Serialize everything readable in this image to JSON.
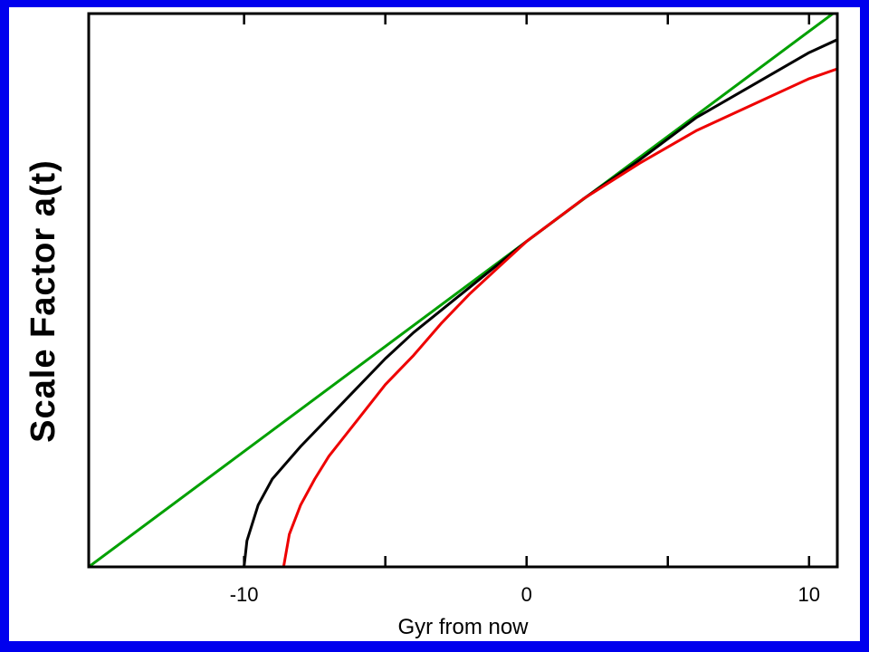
{
  "colors": {
    "background": "#0000ee",
    "panel": "#ffffff"
  },
  "chart_data": {
    "type": "line",
    "title": "",
    "xlabel": "Gyr from now",
    "ylabel": "Scale Factor a(t)",
    "xlim": [
      -15.5,
      11
    ],
    "ylim": [
      0,
      1.7
    ],
    "x_ticks": [
      -10,
      -5,
      0,
      5,
      10
    ],
    "x_tick_labels": [
      "-10",
      "",
      "0",
      "",
      "10"
    ],
    "y_tick_labels": [],
    "grid": false,
    "legend": "none",
    "series": [
      {
        "color": "#00a000",
        "points": [
          [
            -15.5,
            0.0
          ],
          [
            0,
            1.0
          ],
          [
            11,
            1.71
          ]
        ]
      },
      {
        "color": "#000000",
        "points": [
          [
            -10.0,
            0.0
          ],
          [
            -9.9,
            0.08
          ],
          [
            -9.5,
            0.19
          ],
          [
            -9.0,
            0.27
          ],
          [
            -8.0,
            0.37
          ],
          [
            -7.0,
            0.46
          ],
          [
            -6.0,
            0.55
          ],
          [
            -5.0,
            0.64
          ],
          [
            -4.0,
            0.72
          ],
          [
            -3.0,
            0.79
          ],
          [
            -2.0,
            0.86
          ],
          [
            -1.0,
            0.93
          ],
          [
            0.0,
            1.0
          ],
          [
            2.0,
            1.13
          ],
          [
            4.0,
            1.25
          ],
          [
            6.0,
            1.38
          ],
          [
            8.0,
            1.48
          ],
          [
            10.0,
            1.58
          ],
          [
            11.0,
            1.62
          ]
        ]
      },
      {
        "color": "#ee0000",
        "points": [
          [
            -8.6,
            0.0
          ],
          [
            -8.4,
            0.1
          ],
          [
            -8.0,
            0.19
          ],
          [
            -7.5,
            0.27
          ],
          [
            -7.0,
            0.34
          ],
          [
            -6.0,
            0.45
          ],
          [
            -5.0,
            0.56
          ],
          [
            -4.0,
            0.65
          ],
          [
            -3.0,
            0.75
          ],
          [
            -2.0,
            0.84
          ],
          [
            -1.0,
            0.92
          ],
          [
            0.0,
            1.0
          ],
          [
            2.0,
            1.13
          ],
          [
            4.0,
            1.24
          ],
          [
            6.0,
            1.34
          ],
          [
            8.0,
            1.42
          ],
          [
            10.0,
            1.5
          ],
          [
            11.0,
            1.53
          ]
        ]
      }
    ]
  }
}
